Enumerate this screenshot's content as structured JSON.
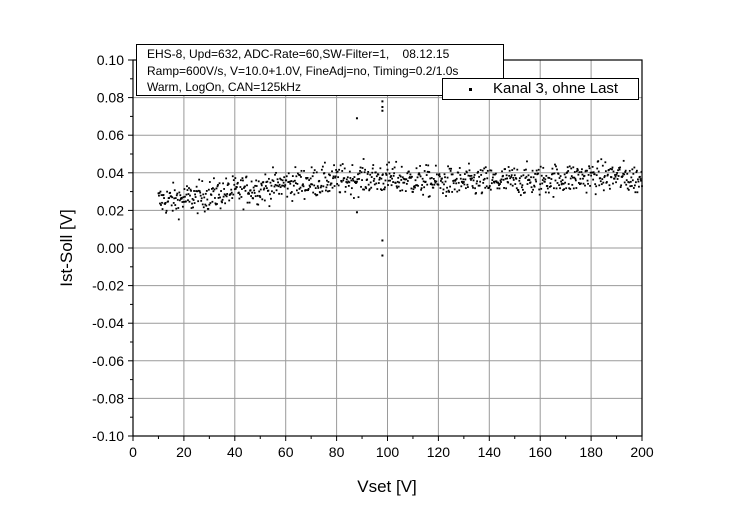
{
  "chart_data": {
    "type": "scatter",
    "title": "",
    "xlabel": "Vset [V]",
    "ylabel": "Ist-Soll [V]",
    "xlim": [
      0,
      200
    ],
    "ylim": [
      -0.1,
      0.1
    ],
    "x_ticks": [
      "0",
      "20",
      "40",
      "60",
      "80",
      "100",
      "120",
      "140",
      "160",
      "180",
      "200"
    ],
    "y_ticks": [
      "0.10",
      "0.08",
      "0.06",
      "0.04",
      "0.02",
      "0.00",
      "-0.02",
      "-0.04",
      "-0.06",
      "-0.08",
      "-0.10"
    ],
    "grid": true,
    "legend_position": "top-right",
    "annotation_lines": [
      "EHS-8, Upd=632, ADC-Rate=60,SW-Filter=1,    08.12.15",
      "Ramp=600V/s, V=10.0+1.0V, FineAdj=no, Timing=0.2/1.0s",
      "Warm, LogOn, CAN=125kHz"
    ],
    "series": [
      {
        "name": "Kanal 3, ohne Last",
        "color": "#000000",
        "marker": "square-dot",
        "x_range": [
          10,
          200
        ],
        "trend_x": [
          10,
          20,
          30,
          40,
          50,
          60,
          70,
          80,
          90,
          100,
          110,
          120,
          130,
          140,
          150,
          160,
          170,
          180,
          190,
          200
        ],
        "trend_y": [
          0.025,
          0.026,
          0.028,
          0.03,
          0.032,
          0.034,
          0.035,
          0.036,
          0.037,
          0.037,
          0.036,
          0.035,
          0.035,
          0.035,
          0.036,
          0.036,
          0.037,
          0.038,
          0.038,
          0.036
        ],
        "spread": 0.004,
        "outliers": [
          {
            "x": 88,
            "y": 0.069
          },
          {
            "x": 98,
            "y": 0.078
          },
          {
            "x": 98,
            "y": 0.075
          },
          {
            "x": 98,
            "y": 0.073
          },
          {
            "x": 98,
            "y": 0.004
          },
          {
            "x": 98,
            "y": -0.004
          },
          {
            "x": 88,
            "y": 0.019
          }
        ]
      }
    ]
  }
}
